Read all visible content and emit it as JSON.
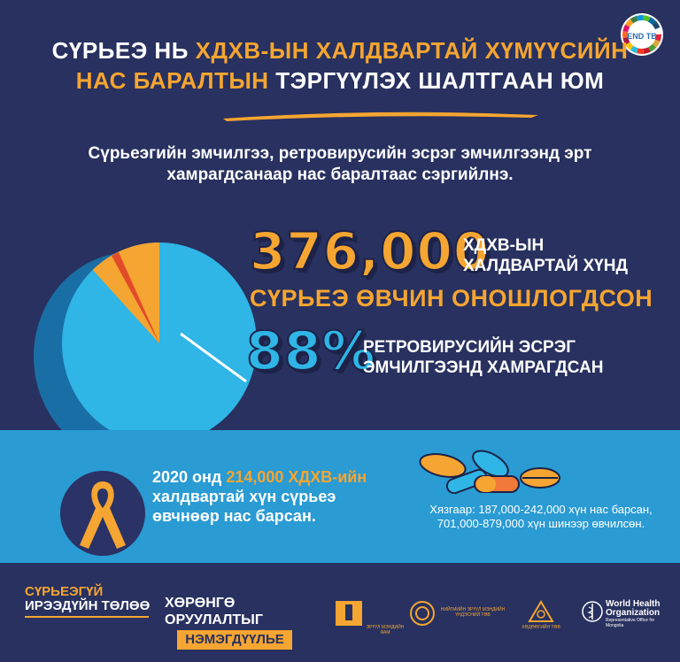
{
  "title": {
    "line1_part1": "СҮРЬЕЭ НЬ ",
    "line1_part2": "ХДХВ-ЫН ХАЛДВАРТАЙ ХҮМҮҮСИЙН",
    "line2_part1": "НАС БАРАЛТЫН ",
    "line2_part2": "ТЭРГҮҮЛЭХ ШАЛТГААН ЮМ"
  },
  "subtitle": {
    "line1": "Сүрьеэгийн эмчилгээ, ретровирусийн эсрэг эмчилгээнд эрт",
    "line2": "хамрагдсанаар нас баралтаас сэргийлнэ."
  },
  "stats": {
    "count": "376,000",
    "count_label_line1": "ХДХВ-ЫН",
    "count_label_line2": "ХАЛДВАРТАЙ ХҮНД",
    "diagnosed": "СҮРЬЕЭ ӨВЧИН ОНОШЛОГДСОН",
    "percent": "88%",
    "percent_value": 88,
    "percent_label_line1": "РЕТРОВИРУСИЙН ЭСРЭГ",
    "percent_label_line2": "ЭМЧИЛГЭЭНД ХАМРАГДСАН"
  },
  "deaths": {
    "line1_part1": "2020 онд ",
    "line1_part2": "214,000 ХДХВ-ийн",
    "line2": "халдвартай хүн сүрьеэ",
    "line3": "өвчнөөр нас барсан.",
    "range_line1": "Хязгаар: 187,000-242,000 хүн нас барсан,",
    "range_line2": "701,000-879,000 хүн шинээр өвчилсөн."
  },
  "footer": {
    "slogan_line1": "СҮРЬЕЭГҮЙ",
    "slogan_line2": "ИРЭЭДҮЙН ТӨЛӨӨ",
    "invest_line1": "ХӨРӨНГӨ",
    "invest_line2": "ОРУУЛАЛТЫГ",
    "invest_line3": "НЭМЭГДҮҮЛЬЕ",
    "logo_ministry": "ЭРҮҮЛ МЭНДИЙН ЯАМ",
    "logo_center": "НИЙГМИЙН ЭРҮҮЛ МЭНДИЙН ҮНДЭСНИЙ ТӨВ",
    "logo_third": "ХӨДӨӨГИЙН ТӨВ",
    "who_line1": "World Health",
    "who_line2": "Organization",
    "who_line3": "Representative Office for Mongolia"
  },
  "sdg_badge": "END TB",
  "colors": {
    "navy": "#28315f",
    "orange": "#f5a531",
    "blue": "#2fb5e6",
    "band": "#2a9bd3"
  }
}
